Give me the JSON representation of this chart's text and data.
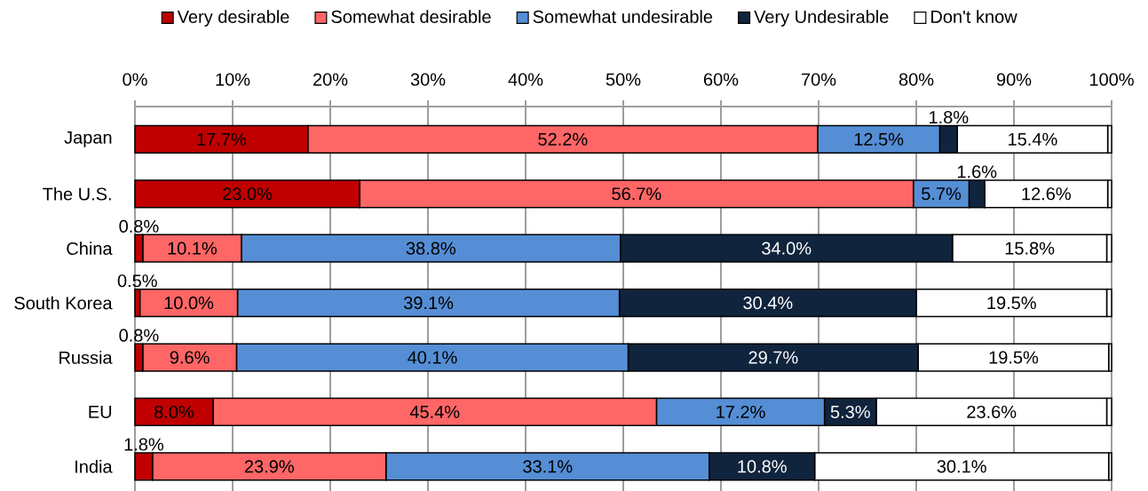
{
  "chart_data": {
    "type": "bar",
    "orientation": "horizontal",
    "stacked": true,
    "categories": [
      "Japan",
      "The U.S.",
      "China",
      "South Korea",
      "Russia",
      "EU",
      "India"
    ],
    "series": [
      {
        "name": "Very desirable",
        "color": "#c00000",
        "values": [
          17.7,
          23.0,
          0.8,
          0.5,
          0.8,
          8.0,
          1.8
        ],
        "value_labels": [
          "17.7%",
          "23.0%",
          "0.8%",
          "0.5%",
          "0.8%",
          "8.0%",
          "1.8%"
        ]
      },
      {
        "name": "Somewhat desirable",
        "color": "#ff6666",
        "values": [
          52.2,
          56.7,
          10.1,
          10.0,
          9.6,
          45.4,
          23.9
        ],
        "value_labels": [
          "52.2%",
          "56.7%",
          "10.1%",
          "10.0%",
          "9.6%",
          "45.4%",
          "23.9%"
        ]
      },
      {
        "name": "Somewhat undesirable",
        "color": "#558ed5",
        "values": [
          12.5,
          5.7,
          38.8,
          39.1,
          40.1,
          17.2,
          33.1
        ],
        "value_labels": [
          "12.5%",
          "5.7%",
          "38.8%",
          "39.1%",
          "40.1%",
          "17.2%",
          "33.1%"
        ]
      },
      {
        "name": "Very Undesirable",
        "color": "#10243e",
        "values": [
          1.8,
          1.6,
          34.0,
          30.4,
          29.7,
          5.3,
          10.8
        ],
        "value_labels": [
          "1.8%",
          "1.6%",
          "34.0%",
          "30.4%",
          "29.7%",
          "5.3%",
          "10.8%"
        ]
      },
      {
        "name": "Don't know",
        "color": "#ffffff",
        "values": [
          15.4,
          12.6,
          15.8,
          19.5,
          19.5,
          23.6,
          30.1
        ],
        "value_labels": [
          "15.4%",
          "12.6%",
          "15.8%",
          "19.5%",
          "19.5%",
          "23.6%",
          "30.1%"
        ]
      },
      {
        "color": "#ffffff",
        "values": [
          0.4,
          0.4,
          0.5,
          0.5,
          0.3,
          0.5,
          0.3
        ]
      }
    ],
    "xlim": [
      0,
      100
    ],
    "xticks": [
      {
        "value": 0,
        "label": "0%"
      },
      {
        "value": 10,
        "label": "10%"
      },
      {
        "value": 20,
        "label": "20%"
      },
      {
        "value": 30,
        "label": "30%"
      },
      {
        "value": 40,
        "label": "40%"
      },
      {
        "value": 50,
        "label": "50%"
      },
      {
        "value": 60,
        "label": "60%"
      },
      {
        "value": 70,
        "label": "70%"
      },
      {
        "value": 80,
        "label": "80%"
      },
      {
        "value": 90,
        "label": "90%"
      },
      {
        "value": 100,
        "label": "100%"
      }
    ],
    "grid": "x",
    "legend": "top"
  }
}
